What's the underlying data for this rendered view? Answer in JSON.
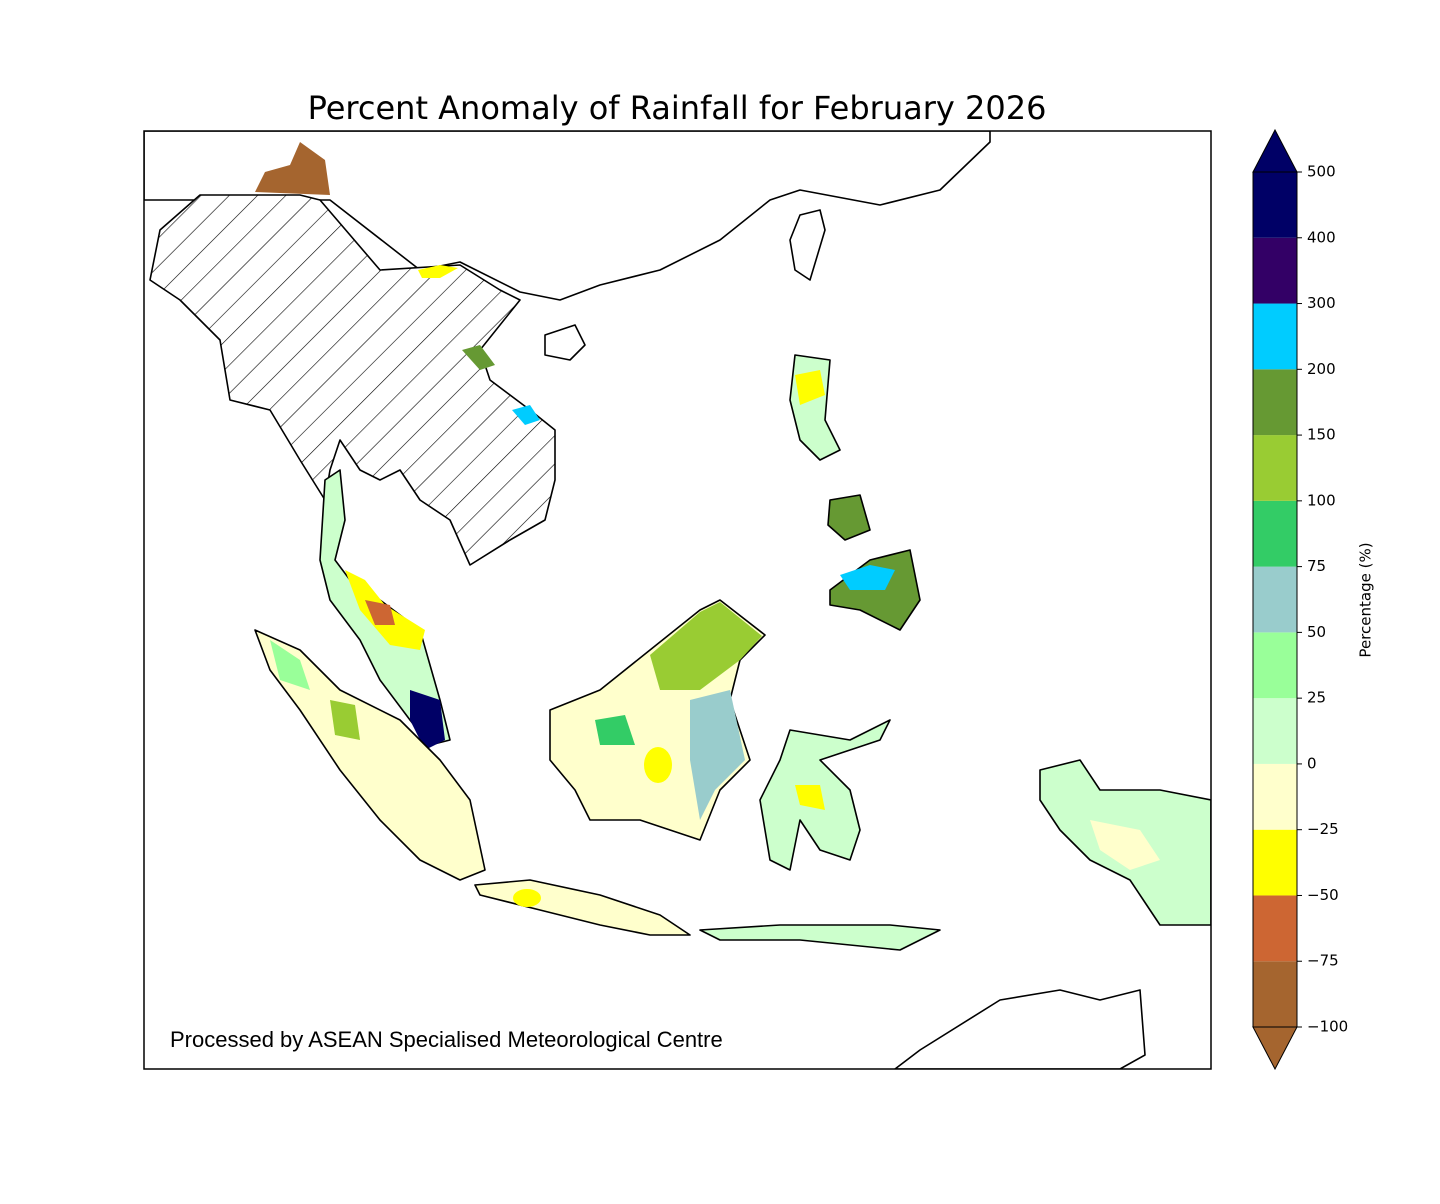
{
  "map": {
    "title": "Percent Anomaly of Rainfall for February 2026",
    "annotation": "Processed by ASEAN Specialised Meteorological Centre",
    "colorbar": {
      "label": "Percentage (%)",
      "ticks": [
        {
          "value": -100,
          "label": "−100"
        },
        {
          "value": -75,
          "label": "−75"
        },
        {
          "value": -50,
          "label": "−50"
        },
        {
          "value": -25,
          "label": "−25"
        },
        0,
        25,
        50,
        75,
        100,
        150,
        200,
        300,
        400,
        500
      ],
      "colors": [
        "#a5652f",
        "#cd6633",
        "#ffff00",
        "#ffffcc",
        "#ccffcc",
        "#99ff99",
        "#99cccc",
        "#33cc66",
        "#99cc33",
        "#669933",
        "#00ccff",
        "#330066",
        "#000066"
      ]
    }
  }
}
